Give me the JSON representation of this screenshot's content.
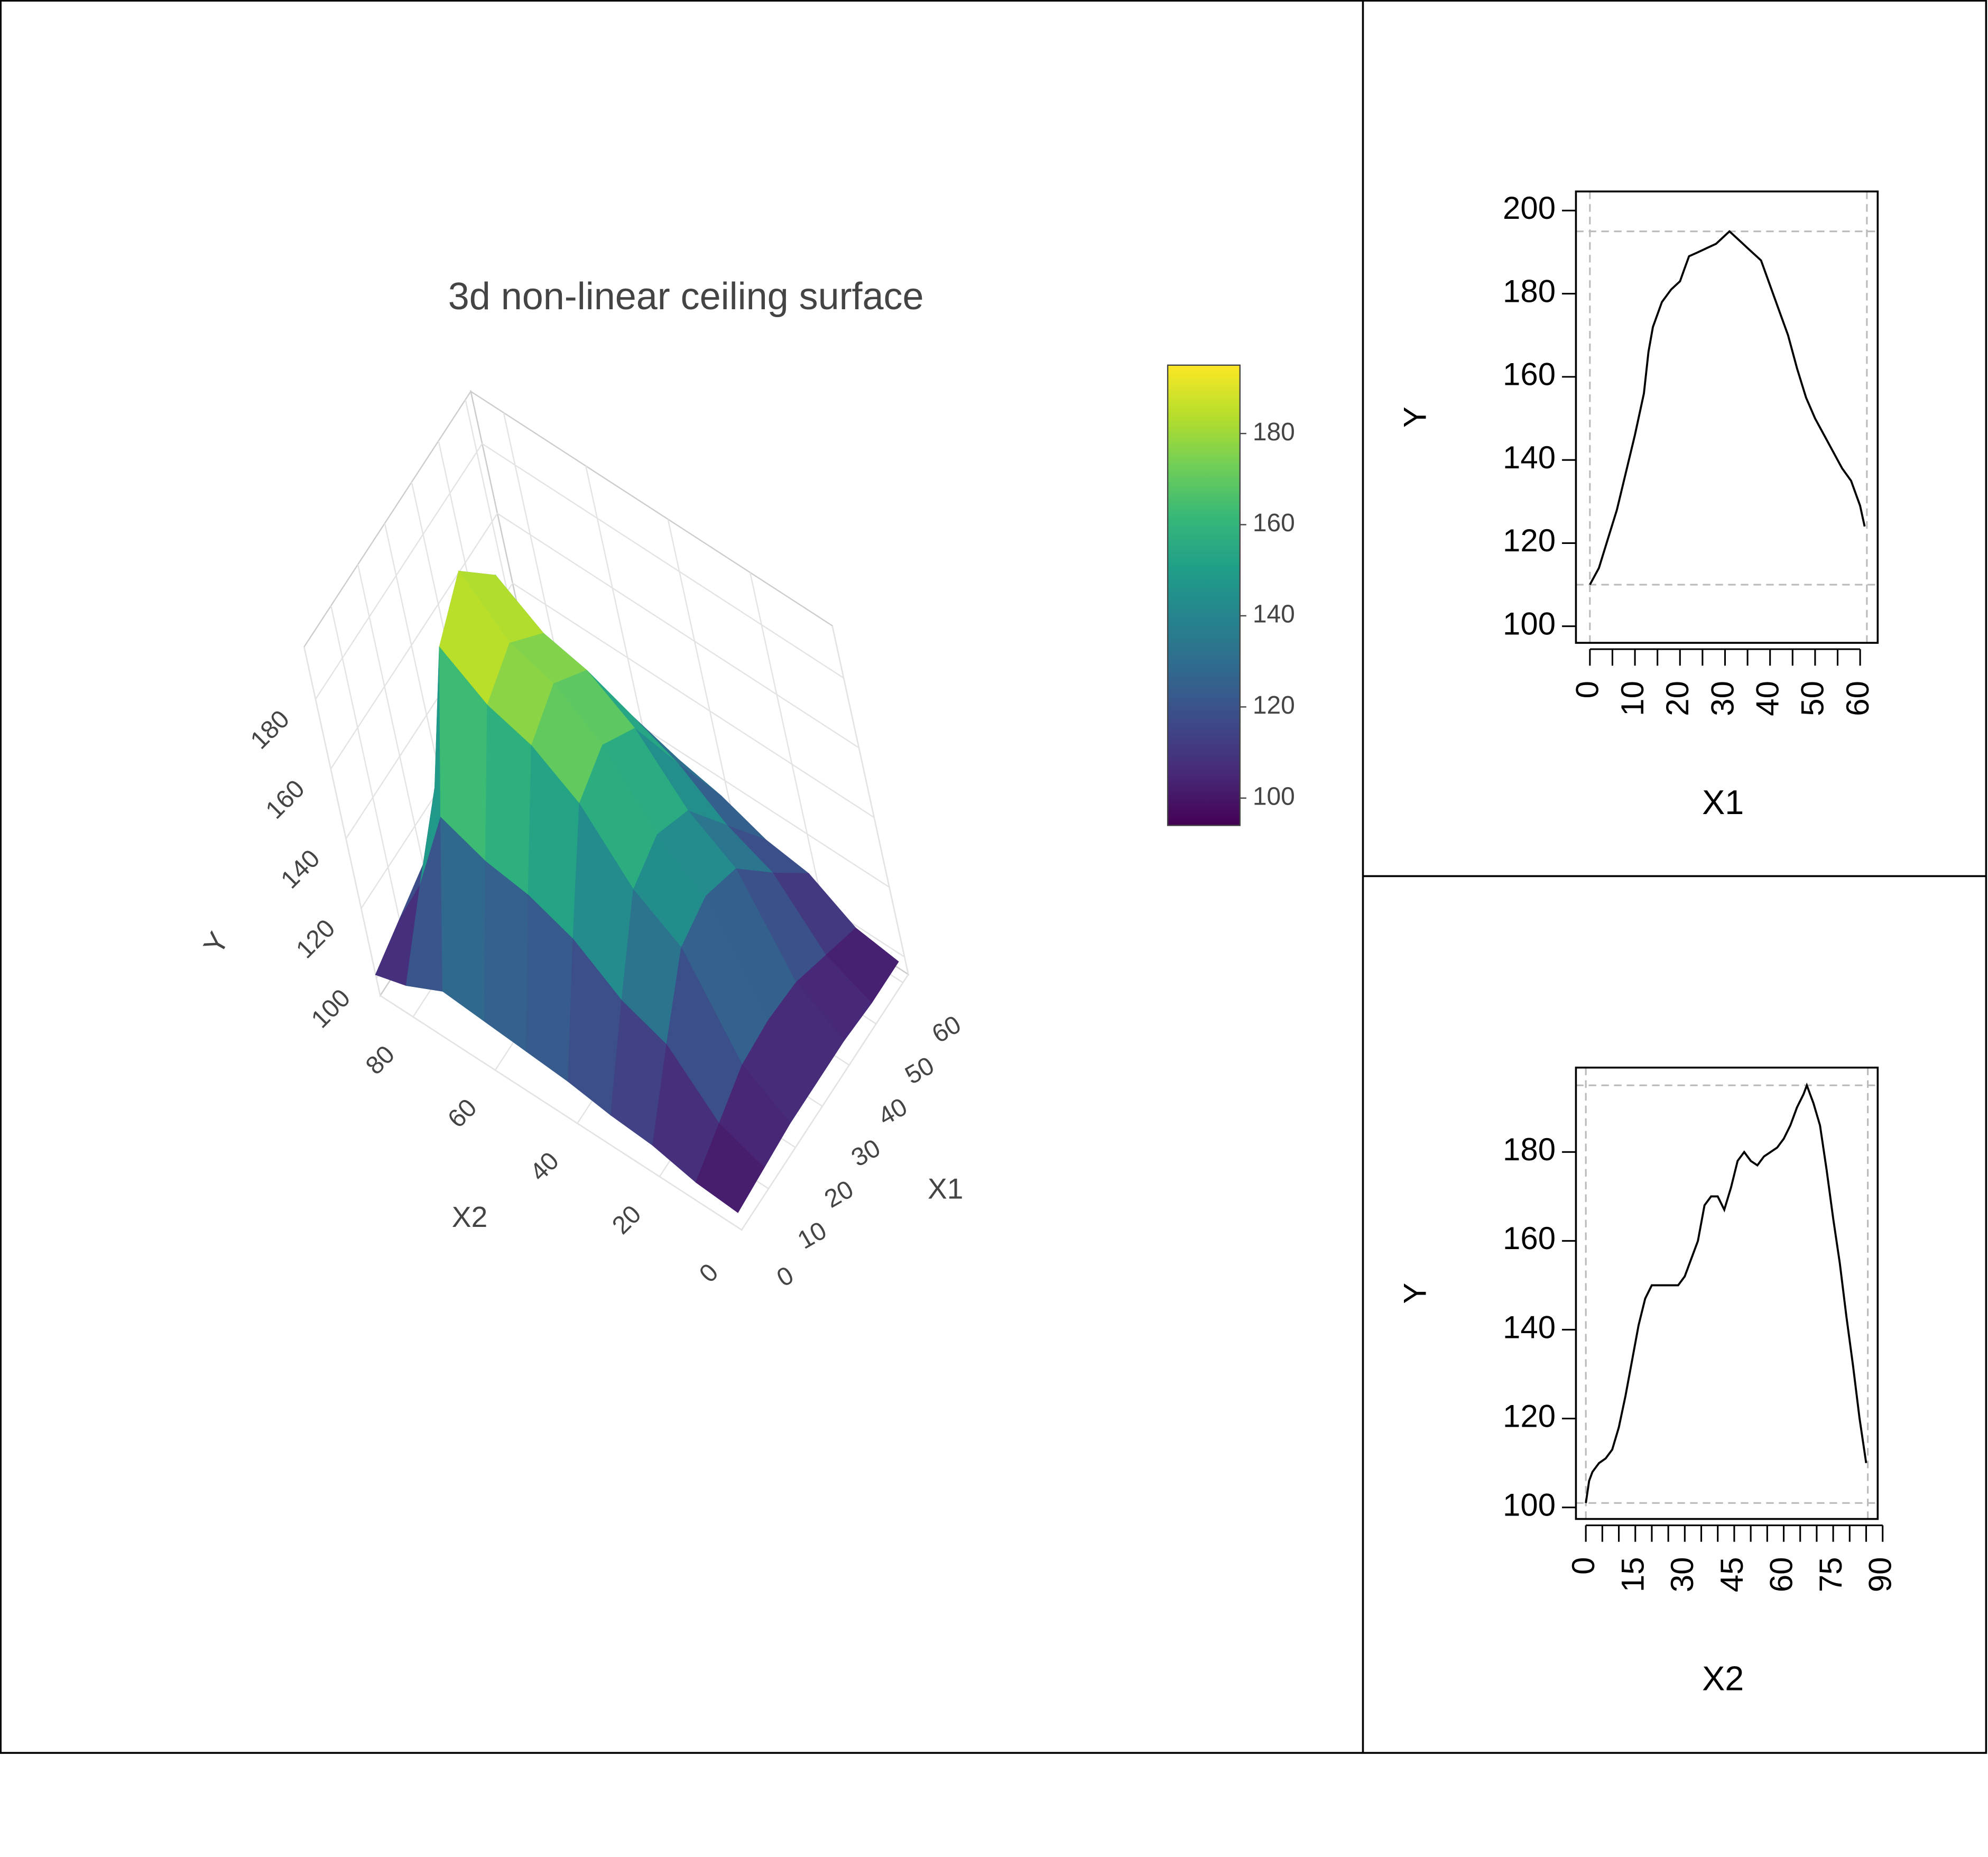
{
  "chart_data": [
    {
      "type": "surface",
      "title": "3d non-linear ceiling surface",
      "x_label": "X1",
      "x2_label": "X2",
      "y_label": "Y",
      "x": [
        0,
        10,
        20,
        30,
        40,
        50,
        60
      ],
      "x2": [
        0,
        10,
        20,
        30,
        40,
        50,
        60,
        70,
        80,
        88
      ],
      "z": [
        [
          100,
          101,
          102,
          102,
          102,
          101,
          101
        ],
        [
          101,
          106,
          111,
          112,
          111,
          107,
          103
        ],
        [
          104,
          121,
          137,
          140,
          136,
          123,
          111
        ],
        [
          105,
          126,
          146,
          150,
          145,
          129,
          113
        ],
        [
          107,
          136,
          163,
          168,
          161,
          139,
          118
        ],
        [
          108,
          141,
          172,
          178,
          170,
          145,
          121
        ],
        [
          109,
          143,
          176,
          182,
          173,
          147,
          122
        ],
        [
          110,
          148,
          185,
          195,
          182,
          153,
          124
        ],
        [
          104,
          121,
          137,
          140,
          136,
          123,
          111
        ],
        [
          101,
          105,
          109,
          110,
          109,
          106,
          103
        ]
      ],
      "xlim": [
        0,
        62
      ],
      "xticks": [
        0,
        10,
        20,
        30,
        40,
        50,
        60
      ],
      "x2lim": [
        0,
        88
      ],
      "x2ticks": [
        0,
        20,
        40,
        60,
        80
      ],
      "ylim": [
        95,
        195
      ],
      "yticks": [
        100,
        120,
        140,
        160,
        180
      ],
      "colorscale": [
        "#440154",
        "#482878",
        "#3e4989",
        "#31688e",
        "#26828e",
        "#1f9e89",
        "#35b779",
        "#6ece58",
        "#b5de2b",
        "#fde725"
      ],
      "colorbar_lim": [
        94,
        195
      ],
      "colorbar_ticks": [
        100,
        120,
        140,
        160,
        180
      ]
    },
    {
      "type": "line",
      "xlabel": "X1",
      "ylabel": "Y",
      "color": "#000000",
      "x": [
        0,
        2,
        4,
        6,
        8,
        10,
        12,
        13,
        14,
        16,
        18,
        20,
        21,
        22,
        24,
        26,
        28,
        30,
        31,
        33,
        35,
        37,
        38,
        40,
        42,
        44,
        46,
        48,
        50,
        52,
        54,
        56,
        58,
        60,
        61
      ],
      "values": [
        110,
        114,
        121,
        128,
        137,
        146,
        156,
        166,
        172,
        178,
        181,
        183,
        186,
        189,
        190,
        191,
        192,
        194,
        195,
        193,
        191,
        189,
        188,
        182,
        176,
        170,
        162,
        155,
        150,
        146,
        142,
        138,
        135,
        129,
        124
      ],
      "xlim": [
        -3.1,
        63.9
      ],
      "ylim": [
        96,
        204.6
      ],
      "xticks": [
        0,
        10,
        20,
        30,
        40,
        50,
        60
      ],
      "xminorticks": [
        5,
        15,
        25,
        35,
        45,
        55
      ],
      "yticks": [
        100,
        120,
        140,
        160,
        180,
        200
      ],
      "hlines": [
        110,
        195
      ],
      "vlines": [
        0,
        61.5
      ]
    },
    {
      "type": "line",
      "xlabel": "X2",
      "ylabel": "Y",
      "color": "#000000",
      "x": [
        0,
        1,
        2,
        4,
        6,
        8,
        10,
        12,
        14,
        16,
        18,
        20,
        24,
        28,
        30,
        32,
        34,
        36,
        38,
        40,
        42,
        44,
        46,
        48,
        50,
        52,
        54,
        56,
        58,
        60,
        62,
        64,
        66,
        67,
        69,
        71,
        73,
        75,
        77,
        79,
        81,
        83,
        85
      ],
      "values": [
        101,
        106,
        108,
        110,
        111,
        113,
        118,
        125,
        133,
        141,
        147,
        150,
        150,
        150,
        152,
        156,
        160,
        168,
        170,
        170,
        167,
        172,
        178,
        180,
        178,
        177,
        179,
        180,
        181,
        183,
        186,
        190,
        193,
        195,
        191,
        186,
        176,
        165,
        155,
        143,
        132,
        120,
        110
      ],
      "xlim": [
        -3,
        88.5
      ],
      "ylim": [
        97.4,
        199
      ],
      "xticks": [
        0,
        15,
        30,
        45,
        60,
        75,
        90
      ],
      "xminorticks": [
        5,
        10,
        20,
        25,
        35,
        40,
        50,
        55,
        65,
        70,
        80,
        85
      ],
      "yticks": [
        100,
        120,
        140,
        160,
        180
      ],
      "hlines": [
        101,
        195
      ],
      "vlines": [
        0,
        85.5
      ]
    }
  ]
}
